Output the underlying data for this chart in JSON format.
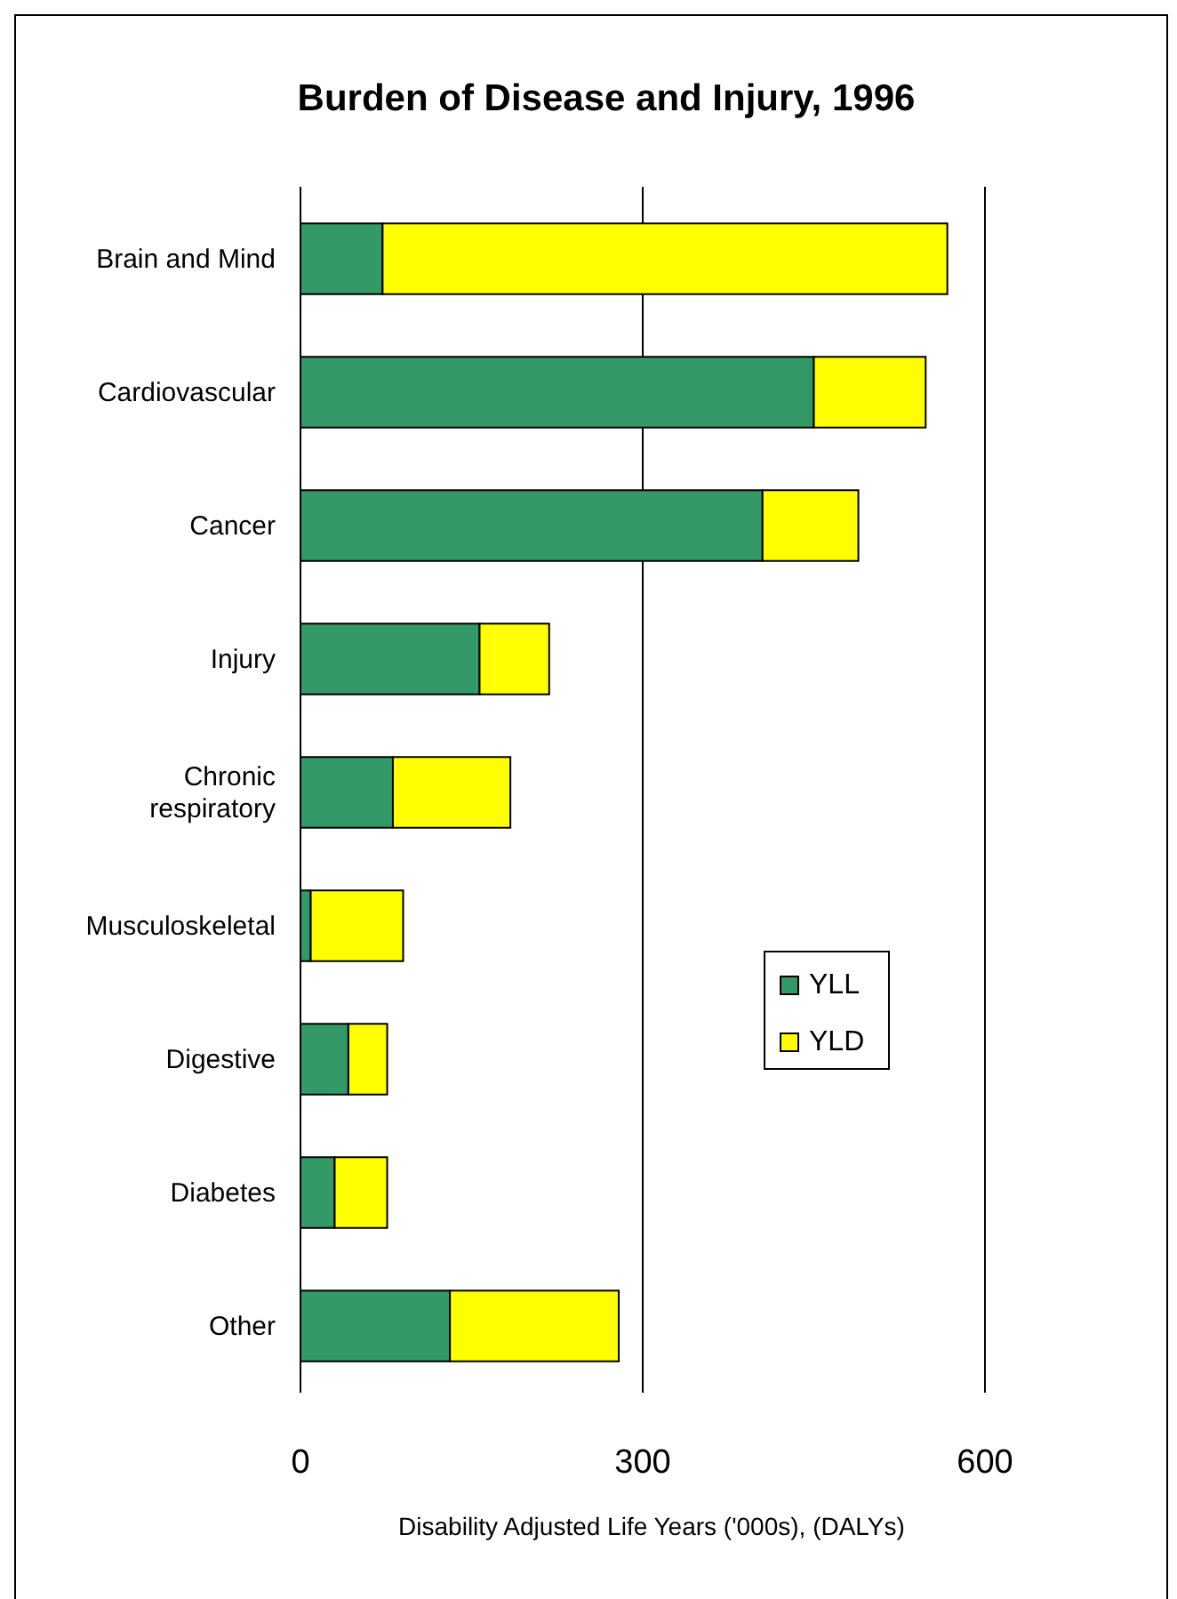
{
  "chart_data": {
    "type": "bar",
    "orientation": "horizontal",
    "stacked": true,
    "title": "Burden of Disease and Injury, 1996",
    "xlabel": "Disability Adjusted Life Years ('000s), (DALYs)",
    "categories": [
      "Brain and Mind",
      "Cardiovascular",
      "Cancer",
      "Injury",
      "Chronic respiratory",
      "Musculoskeletal",
      "Digestive",
      "Diabetes",
      "Other"
    ],
    "series": [
      {
        "name": "YLL",
        "color": "#339966",
        "values": [
          72,
          450,
          405,
          157,
          81,
          9,
          42,
          30,
          131
        ]
      },
      {
        "name": "YLD",
        "color": "#ffff00",
        "values": [
          495,
          98,
          84,
          61,
          103,
          81,
          34,
          46,
          148
        ]
      }
    ],
    "xlim": [
      0,
      600
    ],
    "xticks": [
      0,
      300,
      600
    ],
    "grid": "x",
    "legend": "right"
  }
}
